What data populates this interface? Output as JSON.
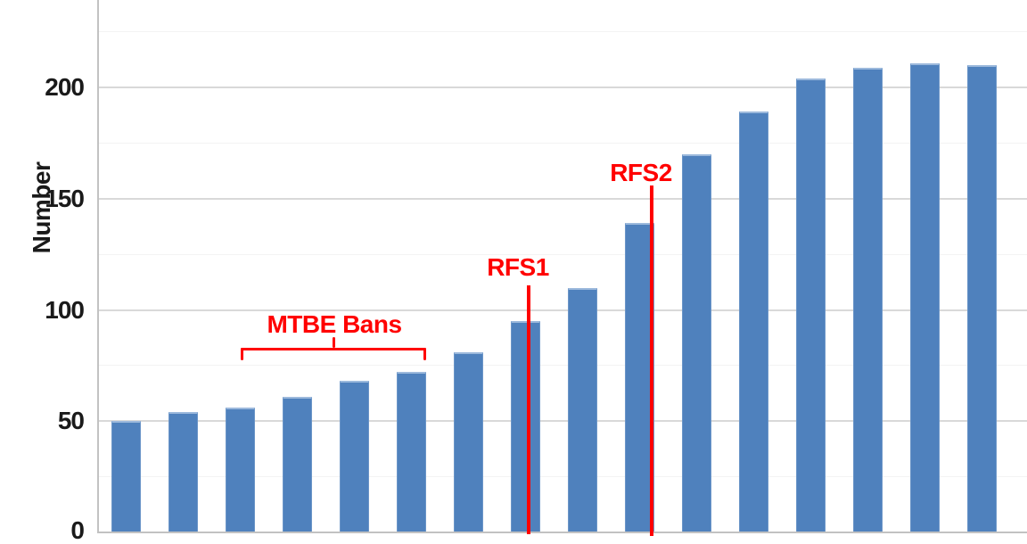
{
  "chart_data": {
    "type": "bar",
    "title": "",
    "xlabel": "",
    "ylabel": "Number",
    "y_ticks": [
      0,
      50,
      100,
      150,
      200
    ],
    "ylim": [
      0,
      239
    ],
    "minor_y_ticks": [
      25,
      75,
      125,
      175,
      225
    ],
    "x_tick_labels_visible": false,
    "categories": [
      "",
      "",
      "",
      "",
      "",
      "",
      "",
      "",
      "",
      "",
      "",
      "",
      "",
      "",
      "",
      ""
    ],
    "values": [
      50,
      54,
      56,
      61,
      68,
      72,
      81,
      95,
      110,
      139,
      170,
      189,
      204,
      209,
      211,
      210
    ],
    "bar_color": "#4F81BD",
    "grid": "on",
    "legend": "none",
    "annotations": [
      {
        "id": "mtbe",
        "type": "brace",
        "label": "MTBE Bans",
        "color": "#FF0000",
        "bars_covered": [
          3,
          4,
          5,
          6
        ]
      },
      {
        "id": "rfs1",
        "type": "vline",
        "label": "RFS1",
        "color": "#FF0000",
        "at_bar": 8
      },
      {
        "id": "rfs2",
        "type": "vline",
        "label": "RFS2",
        "color": "#FF0000",
        "at_bar": 10
      }
    ]
  },
  "axis": {
    "y_label": "Number"
  }
}
